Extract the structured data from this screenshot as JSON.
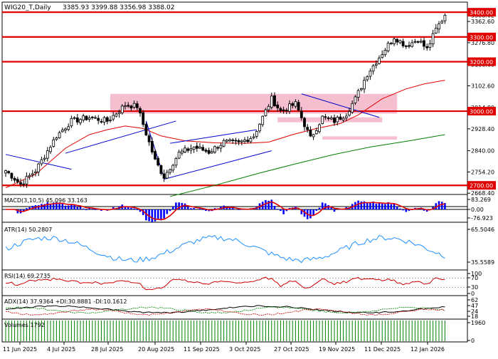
{
  "chart_data": {
    "type": "candlestick",
    "symbol_label": "WIG20_T,Daily",
    "ohlc_label": "3385.93 3399.88 3356.98 3388.02",
    "colors": {
      "up_candle": "#ffffff",
      "down_candle": "#000000",
      "level_line": "#e00000",
      "level_label_bg": "#e00000",
      "ma_fast": "#e00000",
      "ma_slow": "#008000",
      "trendline": "#0000cc",
      "zone": "#f4b4c8",
      "macd_hist": "#0000ff",
      "macd_signal": "#e00000",
      "atr": "#1e90ff",
      "rsi": "#cc0000",
      "adx": "#000000",
      "plus_di": "#008000",
      "minus_di": "#cc0000",
      "volume": "#008000"
    },
    "price_axis": {
      "range": [
        2620,
        3435
      ],
      "ticks": [
        "3388.02",
        "3362.60",
        "3276.80",
        "3188.60",
        "3102.60",
        "3014.80",
        "2928.40",
        "2840.00",
        "2754.20",
        "2668.40"
      ]
    },
    "levels": [
      {
        "value": 3400,
        "label": "3400.00"
      },
      {
        "value": 3300,
        "label": "3300.00"
      },
      {
        "value": 3200,
        "label": "3200.00"
      },
      {
        "value": 3000,
        "label": "3000.00"
      },
      {
        "value": 2700,
        "label": "2700.00"
      }
    ],
    "x_labels": [
      "11 Jun 2025",
      "4 Jul 2025",
      "28 Jul 2025",
      "20 Aug 2025",
      "11 Sep 2025",
      "3 Oct 2025",
      "27 Oct 2025",
      "19 Nov 2025",
      "11 Dec 2025",
      "12 Jan 2026"
    ],
    "anchors": [
      {
        "i": 0,
        "v": 2760
      },
      {
        "i": 5,
        "v": 2705
      },
      {
        "i": 10,
        "v": 2760
      },
      {
        "i": 17,
        "v": 2900
      },
      {
        "i": 22,
        "v": 2960
      },
      {
        "i": 28,
        "v": 2975
      },
      {
        "i": 34,
        "v": 2960
      },
      {
        "i": 40,
        "v": 3025
      },
      {
        "i": 44,
        "v": 3020
      },
      {
        "i": 50,
        "v": 2800
      },
      {
        "i": 53,
        "v": 2735
      },
      {
        "i": 58,
        "v": 2830
      },
      {
        "i": 63,
        "v": 2855
      },
      {
        "i": 68,
        "v": 2835
      },
      {
        "i": 73,
        "v": 2875
      },
      {
        "i": 78,
        "v": 2870
      },
      {
        "i": 83,
        "v": 2900
      },
      {
        "i": 89,
        "v": 3050
      },
      {
        "i": 92,
        "v": 3000
      },
      {
        "i": 97,
        "v": 3030
      },
      {
        "i": 102,
        "v": 2890
      },
      {
        "i": 106,
        "v": 2975
      },
      {
        "i": 110,
        "v": 2960
      },
      {
        "i": 114,
        "v": 2990
      },
      {
        "i": 117,
        "v": 3050
      },
      {
        "i": 121,
        "v": 3150
      },
      {
        "i": 126,
        "v": 3235
      },
      {
        "i": 130,
        "v": 3300
      },
      {
        "i": 134,
        "v": 3265
      },
      {
        "i": 138,
        "v": 3290
      },
      {
        "i": 141,
        "v": 3250
      },
      {
        "i": 144,
        "v": 3330
      },
      {
        "i": 147,
        "v": 3388
      }
    ],
    "ma_fast_points": [
      [
        0,
        2690
      ],
      [
        10,
        2745
      ],
      [
        20,
        2850
      ],
      [
        28,
        2905
      ],
      [
        34,
        2925
      ],
      [
        40,
        2940
      ],
      [
        46,
        2930
      ],
      [
        52,
        2900
      ],
      [
        60,
        2880
      ],
      [
        70,
        2872
      ],
      [
        80,
        2870
      ],
      [
        88,
        2875
      ],
      [
        96,
        2905
      ],
      [
        104,
        2930
      ],
      [
        112,
        2950
      ],
      [
        118,
        2985
      ],
      [
        126,
        3050
      ],
      [
        134,
        3090
      ],
      [
        140,
        3110
      ],
      [
        147,
        3125
      ]
    ],
    "ma_slow_points": [
      [
        55,
        2655
      ],
      [
        70,
        2700
      ],
      [
        85,
        2750
      ],
      [
        98,
        2790
      ],
      [
        110,
        2825
      ],
      [
        122,
        2855
      ],
      [
        135,
        2880
      ],
      [
        147,
        2905
      ]
    ],
    "trendlines": [
      {
        "from": [
          0,
          2825
        ],
        "to": [
          22,
          2765
        ]
      },
      {
        "from": [
          20,
          2830
        ],
        "to": [
          57,
          2960
        ]
      },
      {
        "from": [
          47,
          2960
        ],
        "to": [
          53,
          2730
        ]
      },
      {
        "from": [
          53,
          2725
        ],
        "to": [
          89,
          2840
        ]
      },
      {
        "from": [
          55,
          2870
        ],
        "to": [
          84,
          2925
        ]
      },
      {
        "from": [
          99,
          3070
        ],
        "to": [
          125,
          2975
        ]
      }
    ],
    "zones": [
      {
        "from_i": 35,
        "to_i": 131,
        "top": 3070,
        "bottom": 2990
      },
      {
        "from_i": 91,
        "to_i": 126,
        "top": 2975,
        "bottom": 2955
      },
      {
        "from_i": 106,
        "to_i": 131,
        "top": 2898,
        "bottom": 2885
      }
    ],
    "indicators": {
      "macd": {
        "label": "MACD(3,10,5) 45.096 33.163",
        "ticks": [
          "83.269",
          "0.00",
          "-76.923"
        ]
      },
      "atr": {
        "label": "ATR(14) 50.2807",
        "ticks": [
          "65.5046",
          "35.5589"
        ]
      },
      "rsi": {
        "label": "RSI(14) 69.2735",
        "ticks": [
          "100",
          "70",
          "30",
          "0"
        ]
      },
      "adx": {
        "label": "ADX(14) 37.9364 +DI:30.8881 -DI:10.1612",
        "ticks": [
          "62",
          "47",
          "24",
          "18"
        ]
      },
      "volume": {
        "label": "Volumes 1792",
        "ticks": [
          "1960",
          "0"
        ]
      }
    }
  }
}
